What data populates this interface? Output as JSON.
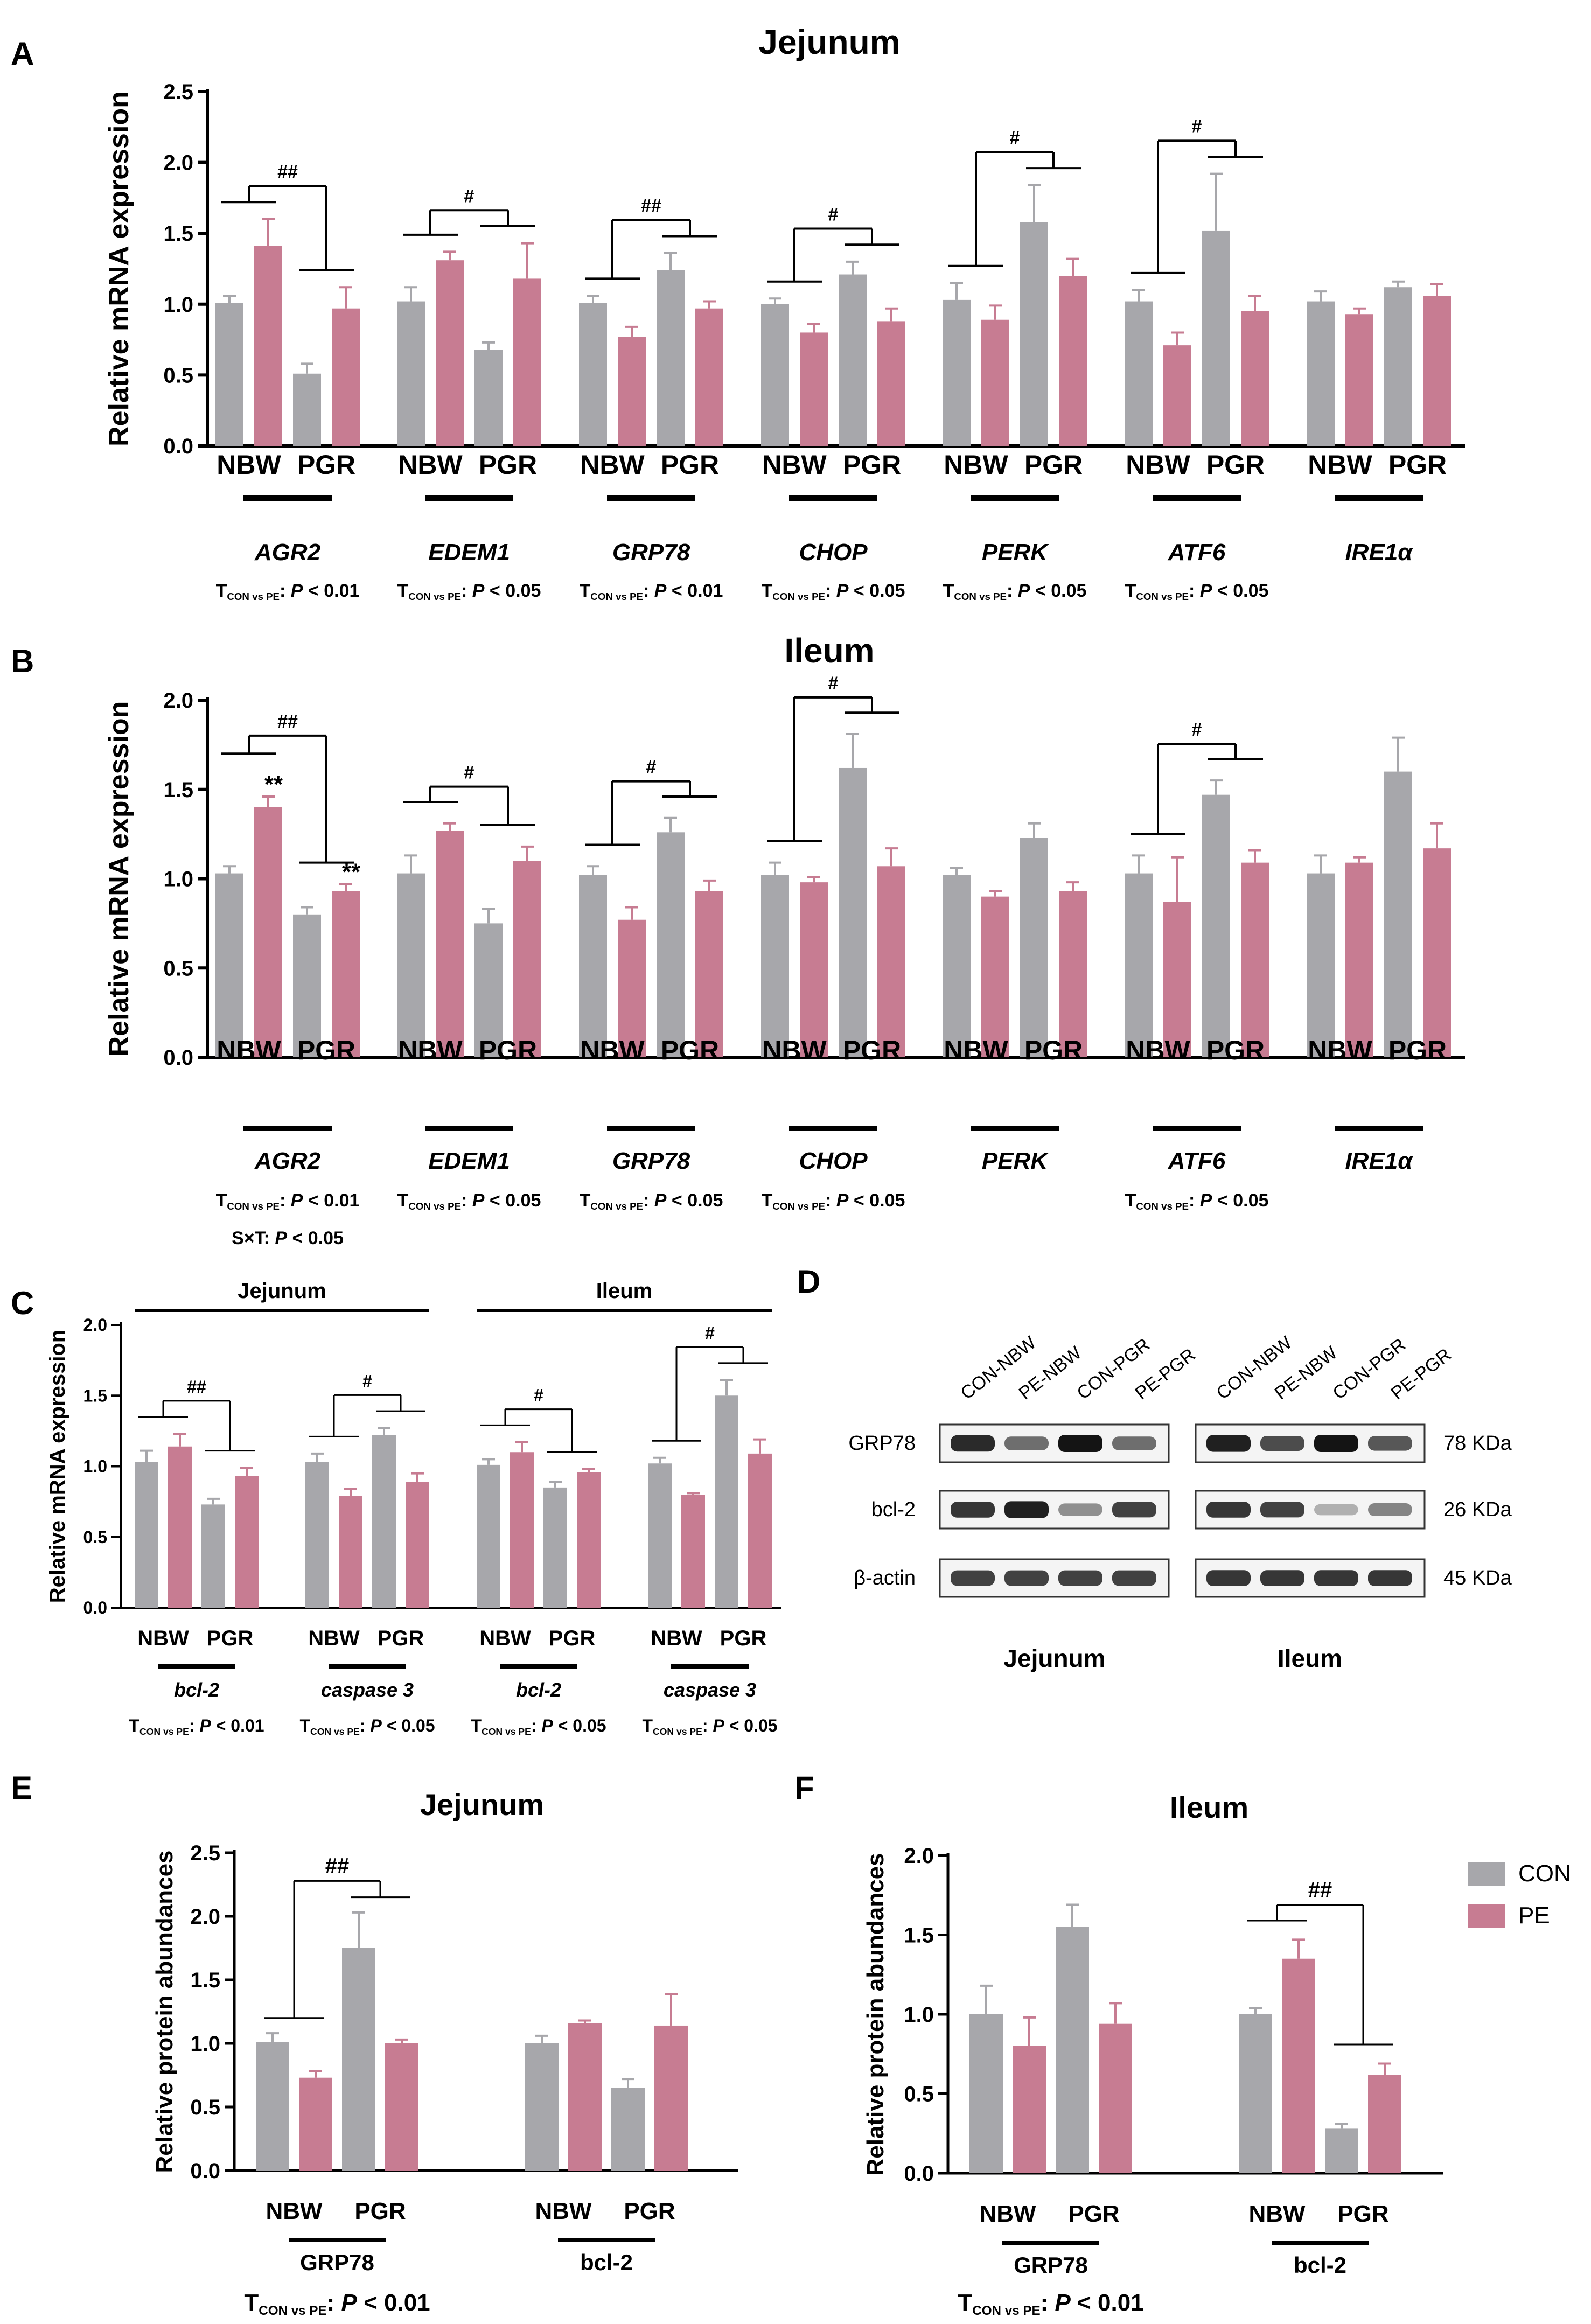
{
  "colors": {
    "CON": "#a7a7ab",
    "PE": "#c77c92",
    "axis": "#000000",
    "error": "#000000"
  },
  "legend": {
    "items": [
      {
        "name": "CON",
        "color": "#a7a7ab"
      },
      {
        "name": "PE",
        "color": "#c77c92"
      }
    ]
  },
  "chart_data": [
    {
      "id": "A",
      "panel_label": "A",
      "type": "bar",
      "title": "Jejunum",
      "ylabel": "Relative mRNA expression",
      "ylim": [
        0,
        2.5
      ],
      "yticks": [
        "0.0",
        "0.5",
        "1.0",
        "1.5",
        "2.0",
        "2.5"
      ],
      "ytick_values": [
        0,
        0.5,
        1,
        1.5,
        2,
        2.5
      ],
      "genes": [
        {
          "name": "AGR2",
          "italic": true,
          "values": [
            1.01,
            1.41,
            0.51,
            0.97
          ],
          "errors": [
            0.05,
            0.19,
            0.07,
            0.15
          ],
          "stat_lines": [
            "T CON vs PE: P < 0.01"
          ],
          "sig": "##",
          "bracket_from": 0
        },
        {
          "name": "EDEM1",
          "italic": true,
          "values": [
            1.02,
            1.31,
            0.68,
            1.18
          ],
          "errors": [
            0.1,
            0.06,
            0.05,
            0.25
          ],
          "stat_lines": [
            "T CON vs PE: P < 0.05"
          ],
          "sig": "#",
          "bracket_from": 0
        },
        {
          "name": "GRP78",
          "italic": true,
          "values": [
            1.01,
            0.77,
            1.24,
            0.97
          ],
          "errors": [
            0.05,
            0.07,
            0.12,
            0.05
          ],
          "stat_lines": [
            "T CON vs PE: P < 0.01"
          ],
          "sig": "##",
          "bracket_from": 0
        },
        {
          "name": "CHOP",
          "italic": true,
          "values": [
            1.0,
            0.8,
            1.21,
            0.88
          ],
          "errors": [
            0.04,
            0.06,
            0.09,
            0.09
          ],
          "stat_lines": [
            "T CON vs PE: P < 0.05"
          ],
          "sig": "#",
          "bracket_from": 0
        },
        {
          "name": "PERK",
          "italic": true,
          "values": [
            1.03,
            0.89,
            1.58,
            1.2
          ],
          "errors": [
            0.12,
            0.1,
            0.26,
            0.12
          ],
          "stat_lines": [
            "T CON vs PE: P < 0.05"
          ],
          "sig": "#",
          "bracket_from": 0
        },
        {
          "name": "ATF6",
          "italic": true,
          "values": [
            1.02,
            0.71,
            1.52,
            0.95
          ],
          "errors": [
            0.08,
            0.09,
            0.4,
            0.11
          ],
          "stat_lines": [
            "T CON vs PE: P < 0.05"
          ],
          "sig": "#",
          "bracket_from": 0
        },
        {
          "name": "IRE1α",
          "italic": true,
          "values": [
            1.02,
            0.93,
            1.12,
            1.06
          ],
          "errors": [
            0.07,
            0.04,
            0.04,
            0.08
          ],
          "stat_lines": [],
          "sig": "",
          "bracket_from": 0
        }
      ],
      "xtick_labels": [
        "NBW",
        "PGR"
      ]
    },
    {
      "id": "B",
      "panel_label": "B",
      "type": "bar",
      "title": "Ileum",
      "ylabel": "Relative mRNA expression",
      "ylim": [
        0,
        2.0
      ],
      "yticks": [
        "0.0",
        "0.5",
        "1.0",
        "1.5",
        "2.0"
      ],
      "ytick_values": [
        0,
        0.5,
        1,
        1.5,
        2
      ],
      "genes": [
        {
          "name": "AGR2",
          "italic": true,
          "values": [
            1.03,
            1.4,
            0.8,
            0.93
          ],
          "errors": [
            0.04,
            0.06,
            0.04,
            0.04
          ],
          "stat_lines": [
            "T CON vs PE: P < 0.01",
            "S×T: P < 0.05"
          ],
          "sig": "##",
          "bracket_from": 0,
          "stars": [
            "",
            "**",
            "",
            "**"
          ]
        },
        {
          "name": "EDEM1",
          "italic": true,
          "values": [
            1.03,
            1.27,
            0.75,
            1.1
          ],
          "errors": [
            0.1,
            0.04,
            0.08,
            0.08
          ],
          "stat_lines": [
            "T CON vs PE: P < 0.05"
          ],
          "sig": "#",
          "bracket_from": 0
        },
        {
          "name": "GRP78",
          "italic": true,
          "values": [
            1.02,
            0.77,
            1.26,
            0.93
          ],
          "errors": [
            0.05,
            0.07,
            0.08,
            0.06
          ],
          "stat_lines": [
            "T CON vs PE: P < 0.05"
          ],
          "sig": "#",
          "bracket_from": 0
        },
        {
          "name": "CHOP",
          "italic": true,
          "values": [
            1.02,
            0.98,
            1.62,
            1.07
          ],
          "errors": [
            0.07,
            0.03,
            0.19,
            0.1
          ],
          "stat_lines": [
            "T CON vs PE: P < 0.05"
          ],
          "sig": "#",
          "bracket_from": 0
        },
        {
          "name": "PERK",
          "italic": true,
          "values": [
            1.02,
            0.9,
            1.23,
            0.93
          ],
          "errors": [
            0.04,
            0.03,
            0.08,
            0.05
          ],
          "stat_lines": [],
          "sig": "",
          "bracket_from": 0
        },
        {
          "name": "ATF6",
          "italic": true,
          "values": [
            1.03,
            0.87,
            1.47,
            1.09
          ],
          "errors": [
            0.1,
            0.25,
            0.08,
            0.07
          ],
          "stat_lines": [
            "T CON vs PE: P < 0.05"
          ],
          "sig": "#",
          "bracket_from": 0
        },
        {
          "name": "IRE1α",
          "italic": true,
          "values": [
            1.03,
            1.09,
            1.6,
            1.17
          ],
          "errors": [
            0.1,
            0.03,
            0.19,
            0.14
          ],
          "stat_lines": [],
          "sig": "",
          "bracket_from": 0
        }
      ],
      "xtick_labels": [
        "NBW",
        "PGR"
      ]
    },
    {
      "id": "C",
      "panel_label": "C",
      "type": "bar",
      "title": "",
      "group_titles": [
        "Jejunum",
        "Ileum"
      ],
      "ylabel": "Relative mRNA expression",
      "ylim": [
        0,
        2.0
      ],
      "yticks": [
        "0.0",
        "0.5",
        "1.0",
        "1.5",
        "2.0"
      ],
      "ytick_values": [
        0,
        0.5,
        1,
        1.5,
        2
      ],
      "genes": [
        {
          "name": "bcl-2",
          "italic": true,
          "values": [
            1.03,
            1.14,
            0.73,
            0.93
          ],
          "errors": [
            0.08,
            0.09,
            0.04,
            0.06
          ],
          "stat_lines": [
            "T CON vs PE: P < 0.01"
          ],
          "sig": "##",
          "bracket_from": 0
        },
        {
          "name": "caspase 3",
          "italic": true,
          "values": [
            1.03,
            0.79,
            1.22,
            0.89
          ],
          "errors": [
            0.06,
            0.05,
            0.05,
            0.06
          ],
          "stat_lines": [
            "T CON vs PE: P < 0.05"
          ],
          "sig": "#",
          "bracket_from": 0
        },
        {
          "name": "bcl-2",
          "italic": true,
          "values": [
            1.01,
            1.1,
            0.85,
            0.96
          ],
          "errors": [
            0.04,
            0.07,
            0.04,
            0.02
          ],
          "stat_lines": [
            "T CON vs PE: P < 0.05"
          ],
          "sig": "#",
          "bracket_from": 0
        },
        {
          "name": "caspase 3",
          "italic": true,
          "values": [
            1.02,
            0.8,
            1.5,
            1.09
          ],
          "errors": [
            0.04,
            0.01,
            0.11,
            0.1
          ],
          "stat_lines": [
            "T CON vs PE: P < 0.05"
          ],
          "sig": "#",
          "bracket_from": 0
        }
      ],
      "xtick_labels": [
        "NBW",
        "PGR"
      ]
    },
    {
      "id": "E",
      "panel_label": "E",
      "type": "bar",
      "title": "Jejunum",
      "ylabel": "Relative protein abundances",
      "ylim": [
        0,
        2.5
      ],
      "yticks": [
        "0.0",
        "0.5",
        "1.0",
        "1.5",
        "2.0",
        "2.5"
      ],
      "ytick_values": [
        0,
        0.5,
        1,
        1.5,
        2,
        2.5
      ],
      "genes": [
        {
          "name": "GRP78",
          "italic": false,
          "values": [
            1.01,
            0.73,
            1.75,
            1.0
          ],
          "errors": [
            0.07,
            0.05,
            0.28,
            0.03
          ],
          "stat_lines": [],
          "sig": "##",
          "bracket_from": 0
        },
        {
          "name": "bcl-2",
          "italic": false,
          "values": [
            1.0,
            1.16,
            0.65,
            1.14
          ],
          "errors": [
            0.06,
            0.02,
            0.07,
            0.25
          ],
          "stat_lines": [],
          "sig": "",
          "bracket_from": 0
        }
      ],
      "footer_stat": "T CON vs PE: P < 0.01",
      "xtick_labels": [
        "NBW",
        "PGR"
      ]
    },
    {
      "id": "F",
      "panel_label": "F",
      "type": "bar",
      "title": "Ileum",
      "ylabel": "Relative protein abundances",
      "ylim": [
        0,
        2.0
      ],
      "yticks": [
        "0.0",
        "0.5",
        "1.0",
        "1.5",
        "2.0"
      ],
      "ytick_values": [
        0,
        0.5,
        1,
        1.5,
        2
      ],
      "genes": [
        {
          "name": "GRP78",
          "italic": false,
          "values": [
            1.0,
            0.8,
            1.55,
            0.94
          ],
          "errors": [
            0.18,
            0.18,
            0.14,
            0.13
          ],
          "stat_lines": [],
          "sig": "",
          "bracket_from": 0
        },
        {
          "name": "bcl-2",
          "italic": false,
          "values": [
            1.0,
            1.35,
            0.28,
            0.62
          ],
          "errors": [
            0.04,
            0.12,
            0.03,
            0.07
          ],
          "stat_lines": [],
          "sig": "##",
          "bracket_from": 0
        }
      ],
      "footer_stat": "T CON vs PE: P < 0.01",
      "xtick_labels": [
        "NBW",
        "PGR"
      ]
    }
  ],
  "western_blot": {
    "panel_label": "D",
    "lanes": [
      "CON-NBW",
      "PE-NBW",
      "CON-PGR",
      "PE-PGR"
    ],
    "rows": [
      {
        "protein": "GRP78",
        "size": "78 KDa"
      },
      {
        "protein": "bcl-2",
        "size": "26 KDa"
      },
      {
        "protein": "β-actin",
        "size": "45 KDa"
      }
    ],
    "tissues": [
      "Jejunum",
      "Ileum"
    ]
  }
}
